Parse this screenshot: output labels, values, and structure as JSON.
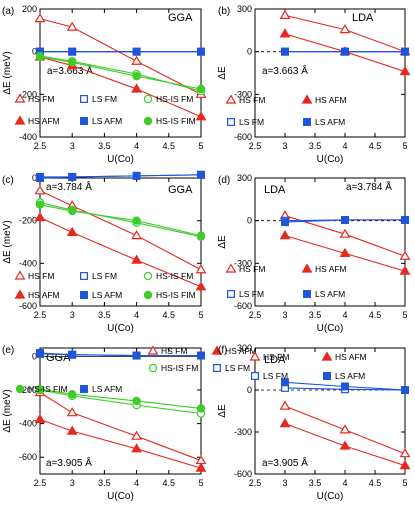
{
  "colors": {
    "red": "#e8281e",
    "blue": "#1f55d8",
    "green": "#3fcc2a",
    "black": "#000000"
  },
  "chart_data": [
    {
      "type": "line",
      "label": "(a)",
      "title": "GGA",
      "annotation": "a=3.663 Å",
      "xlabel": "U(Co)",
      "ylabel": "ΔE (meV)",
      "xlim": [
        2.5,
        5.0
      ],
      "ylim": [
        -400,
        200
      ],
      "xticks": [
        2.5,
        3.0,
        3.5,
        4.0,
        4.5,
        5.0
      ],
      "yticks": [
        -400,
        -200,
        0,
        200
      ],
      "legend": [
        "HS FM",
        "LS FM",
        "HS-IS FM",
        "HS AFM",
        "LS AFM",
        "HS-IS FIM"
      ],
      "series": [
        {
          "name": "HS FM",
          "marker": "triangle",
          "filled": false,
          "color": "red",
          "x": [
            2.5,
            3.0,
            4.0,
            5.0
          ],
          "y": [
            155,
            115,
            -45,
            -200
          ]
        },
        {
          "name": "HS AFM",
          "marker": "triangle",
          "filled": true,
          "color": "red",
          "x": [
            2.5,
            3.0,
            4.0,
            5.0
          ],
          "y": [
            -25,
            -65,
            -175,
            -305
          ]
        },
        {
          "name": "LS FM",
          "marker": "square",
          "filled": false,
          "color": "blue",
          "x": [
            2.5,
            3.0,
            4.0,
            5.0
          ],
          "y": [
            0,
            0,
            0,
            0
          ]
        },
        {
          "name": "LS AFM",
          "marker": "square",
          "filled": true,
          "color": "blue",
          "x": [
            2.5,
            3.0,
            4.0,
            5.0
          ],
          "y": [
            0,
            0,
            0,
            0
          ]
        },
        {
          "name": "HS-IS FM",
          "marker": "circle",
          "filled": false,
          "color": "green",
          "x": [
            2.5,
            3.0,
            4.0,
            5.0
          ],
          "y": [
            -20,
            -45,
            -105,
            -185
          ]
        },
        {
          "name": "HS-IS FIM",
          "marker": "circle",
          "filled": true,
          "color": "green",
          "x": [
            2.5,
            3.0,
            4.0,
            5.0
          ],
          "y": [
            -25,
            -50,
            -115,
            -175
          ]
        }
      ]
    },
    {
      "type": "line",
      "label": "(b)",
      "title": "LDA",
      "annotation": "a=3.663 Å",
      "xlabel": "U(Co)",
      "ylabel": "ΔE",
      "xlim": [
        2.5,
        5.0
      ],
      "ylim": [
        -600,
        300
      ],
      "xticks": [
        2.5,
        3.0,
        3.5,
        4.0,
        4.5,
        5.0
      ],
      "yticks": [
        -600,
        -300,
        0,
        300
      ],
      "legend": [
        "HS FM",
        "HS AFM",
        "LS FM",
        "LS AFM"
      ],
      "series": [
        {
          "name": "HS FM",
          "marker": "triangle",
          "filled": false,
          "color": "red",
          "x": [
            3.0,
            4.0,
            5.0
          ],
          "y": [
            255,
            155,
            0
          ]
        },
        {
          "name": "HS AFM",
          "marker": "triangle",
          "filled": true,
          "color": "red",
          "x": [
            3.0,
            4.0,
            5.0
          ],
          "y": [
            125,
            0,
            -140
          ]
        },
        {
          "name": "LS FM",
          "marker": "square",
          "filled": false,
          "color": "blue",
          "x": [
            3.0,
            4.0,
            5.0
          ],
          "y": [
            0,
            0,
            0
          ]
        },
        {
          "name": "LS AFM",
          "marker": "square",
          "filled": true,
          "color": "blue",
          "x": [
            3.0,
            4.0,
            5.0
          ],
          "y": [
            0,
            0,
            0
          ]
        }
      ]
    },
    {
      "type": "line",
      "label": "(c)",
      "title": "GGA",
      "annotation": "a=3.784 Å",
      "xlabel": "U(Co)",
      "ylabel": "ΔE (meV)",
      "xlim": [
        2.5,
        5.0
      ],
      "ylim": [
        -600,
        0
      ],
      "xticks": [
        2.5,
        3.0,
        3.5,
        4.0,
        4.5,
        5.0
      ],
      "yticks": [
        -600,
        -400,
        -200,
        0
      ],
      "legend": [
        "HS FM",
        "LS FM",
        "HS-IS FM",
        "HS AFM",
        "LS AFM",
        "HS-IS FIM"
      ],
      "series": [
        {
          "name": "HS FM",
          "marker": "triangle",
          "filled": false,
          "color": "red",
          "x": [
            2.5,
            3.0,
            4.0,
            5.0
          ],
          "y": [
            -60,
            -130,
            -270,
            -430
          ]
        },
        {
          "name": "HS AFM",
          "marker": "triangle",
          "filled": true,
          "color": "red",
          "x": [
            2.5,
            3.0,
            4.0,
            5.0
          ],
          "y": [
            -185,
            -255,
            -385,
            -510
          ]
        },
        {
          "name": "LS FM",
          "marker": "square",
          "filled": false,
          "color": "blue",
          "x": [
            2.5,
            3.0,
            4.0,
            5.0
          ],
          "y": [
            5,
            5,
            10,
            15
          ]
        },
        {
          "name": "LS AFM",
          "marker": "square",
          "filled": true,
          "color": "blue",
          "x": [
            2.5,
            3.0,
            4.0,
            5.0
          ],
          "y": [
            0,
            5,
            10,
            15
          ]
        },
        {
          "name": "HS-IS FM",
          "marker": "circle",
          "filled": false,
          "color": "green",
          "x": [
            2.5,
            3.0,
            4.0,
            5.0
          ],
          "y": [
            -115,
            -150,
            -210,
            -275
          ]
        },
        {
          "name": "HS-IS FIM",
          "marker": "circle",
          "filled": true,
          "color": "green",
          "x": [
            2.5,
            3.0,
            4.0,
            5.0
          ],
          "y": [
            -125,
            -155,
            -200,
            -270
          ]
        }
      ]
    },
    {
      "type": "line",
      "label": "(d)",
      "title": "LDA",
      "annotation": "a=3.784 Å",
      "xlabel": "U(Co)",
      "ylabel": "ΔE",
      "xlim": [
        2.5,
        5.0
      ],
      "ylim": [
        -600,
        300
      ],
      "xticks": [
        2.5,
        3.0,
        3.5,
        4.0,
        4.5,
        5.0
      ],
      "yticks": [
        -600,
        -300,
        0,
        300
      ],
      "legend": [
        "HS FM",
        "HS AFM",
        "LS FM",
        "LS AFM"
      ],
      "series": [
        {
          "name": "HS FM",
          "marker": "triangle",
          "filled": false,
          "color": "red",
          "x": [
            3.0,
            4.0,
            5.0
          ],
          "y": [
            35,
            -95,
            -250
          ]
        },
        {
          "name": "HS AFM",
          "marker": "triangle",
          "filled": true,
          "color": "red",
          "x": [
            3.0,
            4.0,
            5.0
          ],
          "y": [
            -105,
            -230,
            -355
          ]
        },
        {
          "name": "LS FM",
          "marker": "square",
          "filled": false,
          "color": "blue",
          "x": [
            3.0,
            4.0,
            5.0
          ],
          "y": [
            0,
            5,
            5
          ]
        },
        {
          "name": "LS AFM",
          "marker": "square",
          "filled": true,
          "color": "blue",
          "x": [
            3.0,
            4.0,
            5.0
          ],
          "y": [
            -10,
            5,
            5
          ]
        }
      ]
    },
    {
      "type": "line",
      "label": "(e)",
      "title": "GGA",
      "annotation": "a=3.905 Å",
      "xlabel": "U(Co)",
      "ylabel": "ΔE (meV)",
      "xlim": [
        2.5,
        5.0
      ],
      "ylim": [
        -700,
        50
      ],
      "xticks": [
        2.5,
        3.0,
        3.5,
        4.0,
        4.5,
        5.0
      ],
      "yticks": [
        -600,
        -400,
        -200,
        0
      ],
      "legend": [
        "HS FM",
        "HS AFM",
        "HS-IS FM",
        "LS FM",
        "HS-IS FIM",
        "LS AFM"
      ],
      "series": [
        {
          "name": "HS FM",
          "marker": "triangle",
          "filled": false,
          "color": "red",
          "x": [
            2.5,
            3.0,
            4.0,
            5.0
          ],
          "y": [
            -215,
            -335,
            -475,
            -620
          ]
        },
        {
          "name": "HS AFM",
          "marker": "triangle",
          "filled": true,
          "color": "red",
          "x": [
            2.5,
            3.0,
            4.0,
            5.0
          ],
          "y": [
            -375,
            -445,
            -550,
            -665
          ]
        },
        {
          "name": "LS FM",
          "marker": "square",
          "filled": false,
          "color": "blue",
          "x": [
            2.5,
            3.0,
            4.0,
            5.0
          ],
          "y": [
            15,
            10,
            5,
            5
          ]
        },
        {
          "name": "LS AFM",
          "marker": "square",
          "filled": true,
          "color": "blue",
          "x": [
            2.5,
            3.0,
            4.0,
            5.0
          ],
          "y": [
            20,
            10,
            5,
            5
          ]
        },
        {
          "name": "HS-IS FM",
          "marker": "circle",
          "filled": false,
          "color": "green",
          "x": [
            2.5,
            3.0,
            4.0,
            5.0
          ],
          "y": [
            -200,
            -235,
            -290,
            -340
          ]
        },
        {
          "name": "HS-IS FIM",
          "marker": "circle",
          "filled": true,
          "color": "green",
          "x": [
            2.5,
            3.0,
            4.0,
            5.0
          ],
          "y": [
            -195,
            -225,
            -265,
            -310
          ]
        }
      ]
    },
    {
      "type": "line",
      "label": "(f)",
      "title": "LDA",
      "annotation": "a=3.905 Å",
      "xlabel": "U(Co)",
      "ylabel": "ΔE",
      "xlim": [
        2.5,
        5.0
      ],
      "ylim": [
        -600,
        300
      ],
      "xticks": [
        2.5,
        3.0,
        3.5,
        4.0,
        4.5,
        5.0
      ],
      "yticks": [
        -600,
        -300,
        0,
        300
      ],
      "legend": [
        "HS FM",
        "HS AFM",
        "LS FM",
        "LS AFM"
      ],
      "series": [
        {
          "name": "HS FM",
          "marker": "triangle",
          "filled": false,
          "color": "red",
          "x": [
            3.0,
            4.0,
            5.0
          ],
          "y": [
            -115,
            -285,
            -455
          ]
        },
        {
          "name": "HS AFM",
          "marker": "triangle",
          "filled": true,
          "color": "red",
          "x": [
            3.0,
            4.0,
            5.0
          ],
          "y": [
            -240,
            -400,
            -540
          ]
        },
        {
          "name": "LS FM",
          "marker": "square",
          "filled": false,
          "color": "blue",
          "x": [
            3.0,
            4.0,
            5.0
          ],
          "y": [
            15,
            5,
            0
          ]
        },
        {
          "name": "LS AFM",
          "marker": "square",
          "filled": true,
          "color": "blue",
          "x": [
            3.0,
            4.0,
            5.0
          ],
          "y": [
            55,
            25,
            0
          ]
        }
      ]
    }
  ]
}
